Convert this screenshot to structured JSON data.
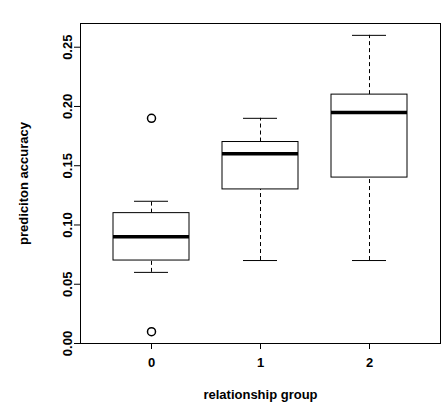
{
  "chart_data": {
    "type": "box",
    "x_label": "relationship group",
    "y_label": "prediciton accuracy",
    "categories": [
      "0",
      "1",
      "2"
    ],
    "min": [
      0.06,
      0.07,
      0.07
    ],
    "q1": [
      0.07,
      0.13,
      0.14
    ],
    "median": [
      0.09,
      0.16,
      0.195
    ],
    "q3": [
      0.11,
      0.17,
      0.21
    ],
    "max": [
      0.12,
      0.19,
      0.26
    ],
    "outliers": [
      [
        0.19,
        0.01
      ],
      [],
      []
    ],
    "ylim": [
      0,
      0.27
    ],
    "yticks": [
      {
        "value": 0,
        "label": "0.00"
      },
      {
        "value": 0.05,
        "label": "0.05"
      },
      {
        "value": 0.1,
        "label": "0.10"
      },
      {
        "value": 0.15,
        "label": "0.15"
      },
      {
        "value": 0.2,
        "label": "0.20"
      },
      {
        "value": 0.25,
        "label": "0.25"
      }
    ]
  }
}
